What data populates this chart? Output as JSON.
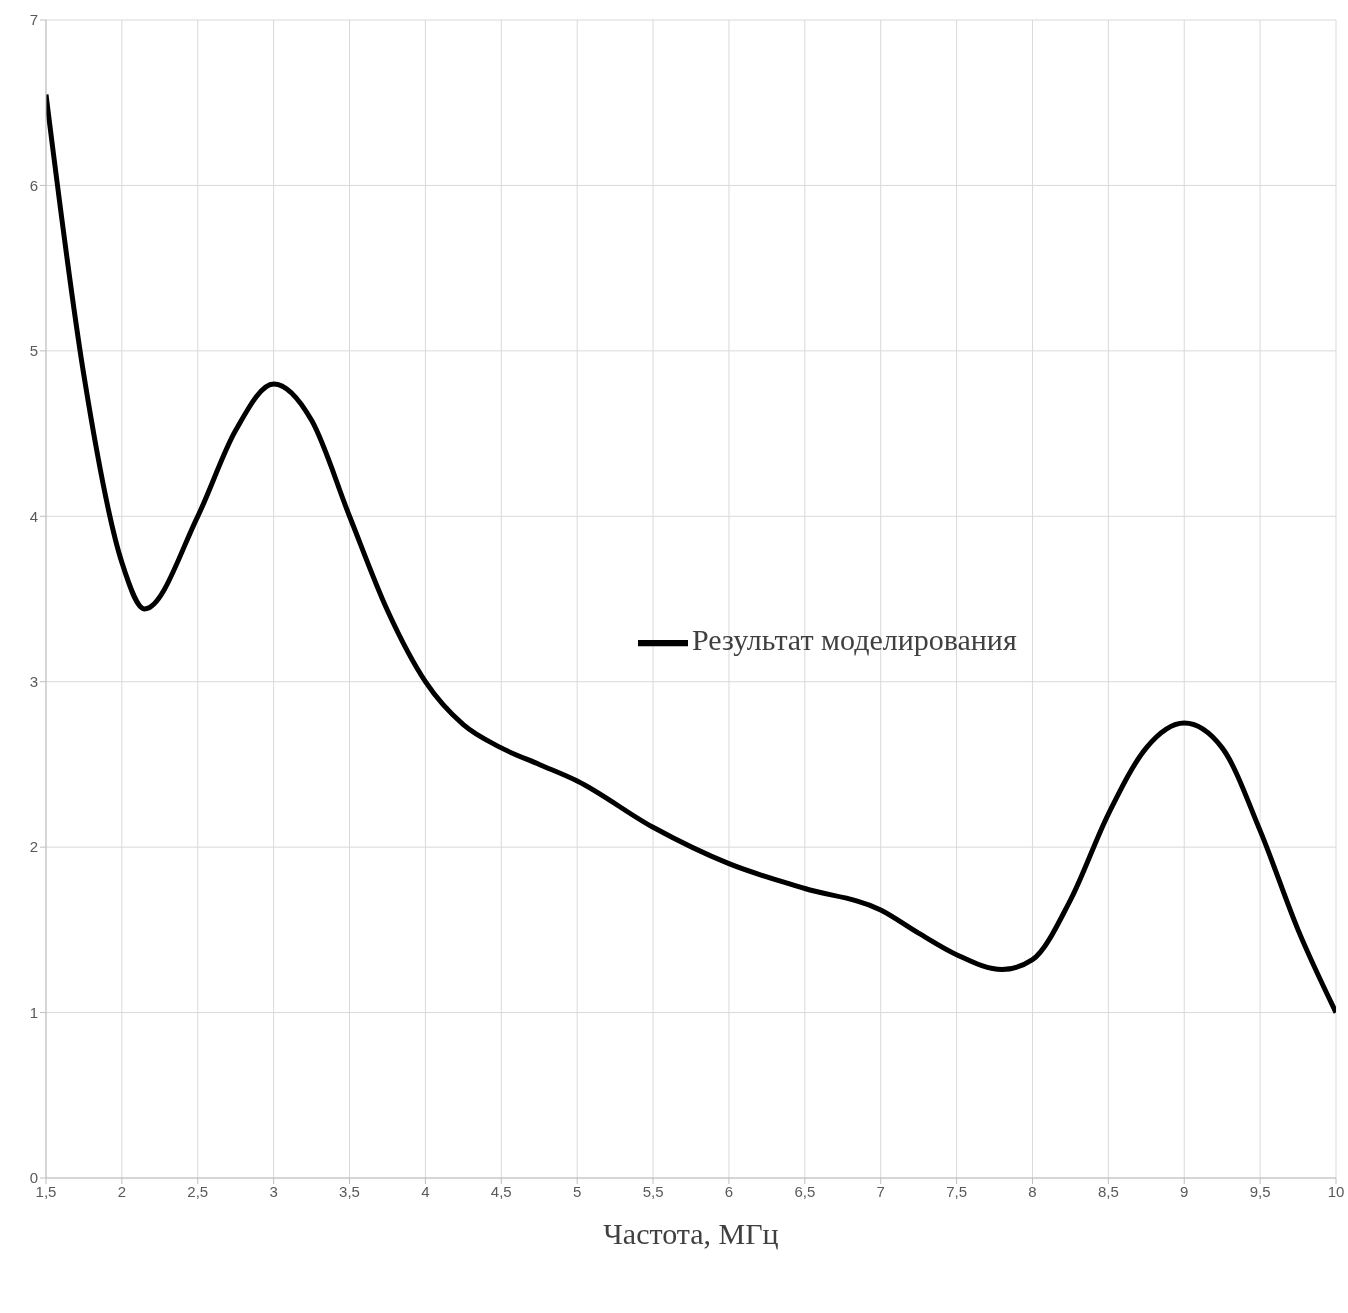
{
  "chart_data": {
    "type": "line",
    "xlabel": "Частота, МГц",
    "x": [
      1.5,
      1.75,
      2,
      2.15,
      2.5,
      2.75,
      3,
      3.25,
      3.5,
      3.75,
      4,
      4.25,
      4.5,
      4.75,
      5,
      5.5,
      6,
      6.5,
      7,
      7.25,
      7.5,
      7.8,
      8,
      8.25,
      8.5,
      8.75,
      9,
      9.25,
      9.5,
      9.75,
      10
    ],
    "series": [
      {
        "name": "Результат моделирования",
        "color": "#000000",
        "values": [
          6.55,
          4.85,
          3.72,
          3.44,
          4.0,
          4.52,
          4.8,
          4.58,
          4.0,
          3.43,
          3.0,
          2.74,
          2.6,
          2.5,
          2.4,
          2.12,
          1.9,
          1.75,
          1.62,
          1.48,
          1.35,
          1.26,
          1.32,
          1.68,
          2.2,
          2.6,
          2.75,
          2.6,
          2.1,
          1.5,
          1.0
        ]
      }
    ],
    "xlim": [
      1.5,
      10
    ],
    "xticks": [
      {
        "value": 1.5,
        "label": "1,5"
      },
      2,
      {
        "value": 2.5,
        "label": "2,5"
      },
      3,
      {
        "value": 3.5,
        "label": "3,5"
      },
      4,
      {
        "value": 4.5,
        "label": "4,5"
      },
      5,
      {
        "value": 5.5,
        "label": "5,5"
      },
      6,
      {
        "value": 6.5,
        "label": "6,5"
      },
      7,
      {
        "value": 7.5,
        "label": "7,5"
      },
      8,
      {
        "value": 8.5,
        "label": "8,5"
      },
      9,
      {
        "value": 9.5,
        "label": "9,5"
      },
      10
    ],
    "ylim": [
      0,
      7
    ],
    "yticks": [
      0,
      1,
      2,
      3,
      4,
      5,
      6,
      7
    ],
    "grid": true,
    "legend": "center",
    "marker": "none",
    "line_style": "solid"
  }
}
